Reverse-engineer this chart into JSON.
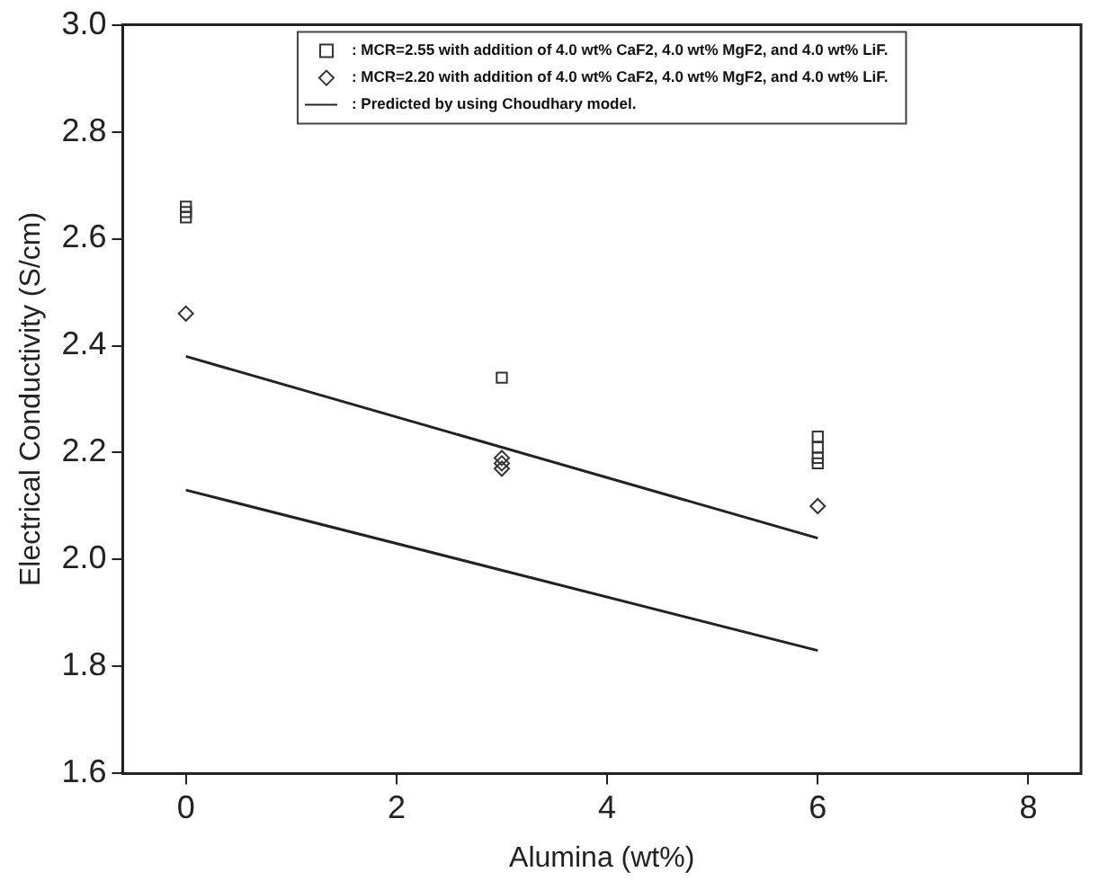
{
  "chart_data": {
    "type": "scatter",
    "xlabel": "Alumina (wt%)",
    "ylabel": "Electrical Conductivity (S/cm)",
    "xlim": [
      -0.6,
      8.5
    ],
    "xticks": [
      0,
      2,
      4,
      6,
      8
    ],
    "ylim": [
      1.6,
      3.0
    ],
    "yticks": [
      {
        "value": 1.6,
        "label": "1.6"
      },
      {
        "value": 1.8,
        "label": "1.8"
      },
      {
        "value": 2,
        "label": "2.0"
      },
      {
        "value": 2.2,
        "label": "2.2"
      },
      {
        "value": 2.4,
        "label": "2.4"
      },
      {
        "value": 2.6,
        "label": "2.6"
      },
      {
        "value": 2.8,
        "label": "2.8"
      },
      {
        "value": 3,
        "label": "3.0"
      }
    ],
    "grid": false,
    "legend": "top",
    "series": [
      {
        "name": ": MCR=2.55 with addition of 4.0 wt% CaF2, 4.0 wt% MgF2, and 4.0 wt% LiF.",
        "marker": "square",
        "color": "#333333",
        "x": [
          0,
          0,
          0,
          3,
          6,
          6,
          6,
          6
        ],
        "values": [
          2.66,
          2.65,
          2.64,
          2.34,
          2.23,
          2.21,
          2.19,
          2.18
        ]
      },
      {
        "name": ": MCR=2.20 with addition of 4.0 wt% CaF2, 4.0 wt% MgF2, and 4.0 wt% LiF.",
        "marker": "diamond",
        "color": "#333333",
        "x": [
          0,
          3,
          3,
          3,
          6
        ],
        "values": [
          2.46,
          2.19,
          2.18,
          2.17,
          2.1
        ]
      },
      {
        "name": ": Predicted by using Choudhary model.",
        "type": "line",
        "marker": "none",
        "color": "#222222",
        "x": [
          0,
          6
        ],
        "values": [
          2.38,
          2.04
        ]
      },
      {
        "type": "line",
        "marker": "none",
        "color": "#222222",
        "x": [
          0,
          6
        ],
        "values": [
          2.13,
          1.83
        ]
      }
    ]
  }
}
